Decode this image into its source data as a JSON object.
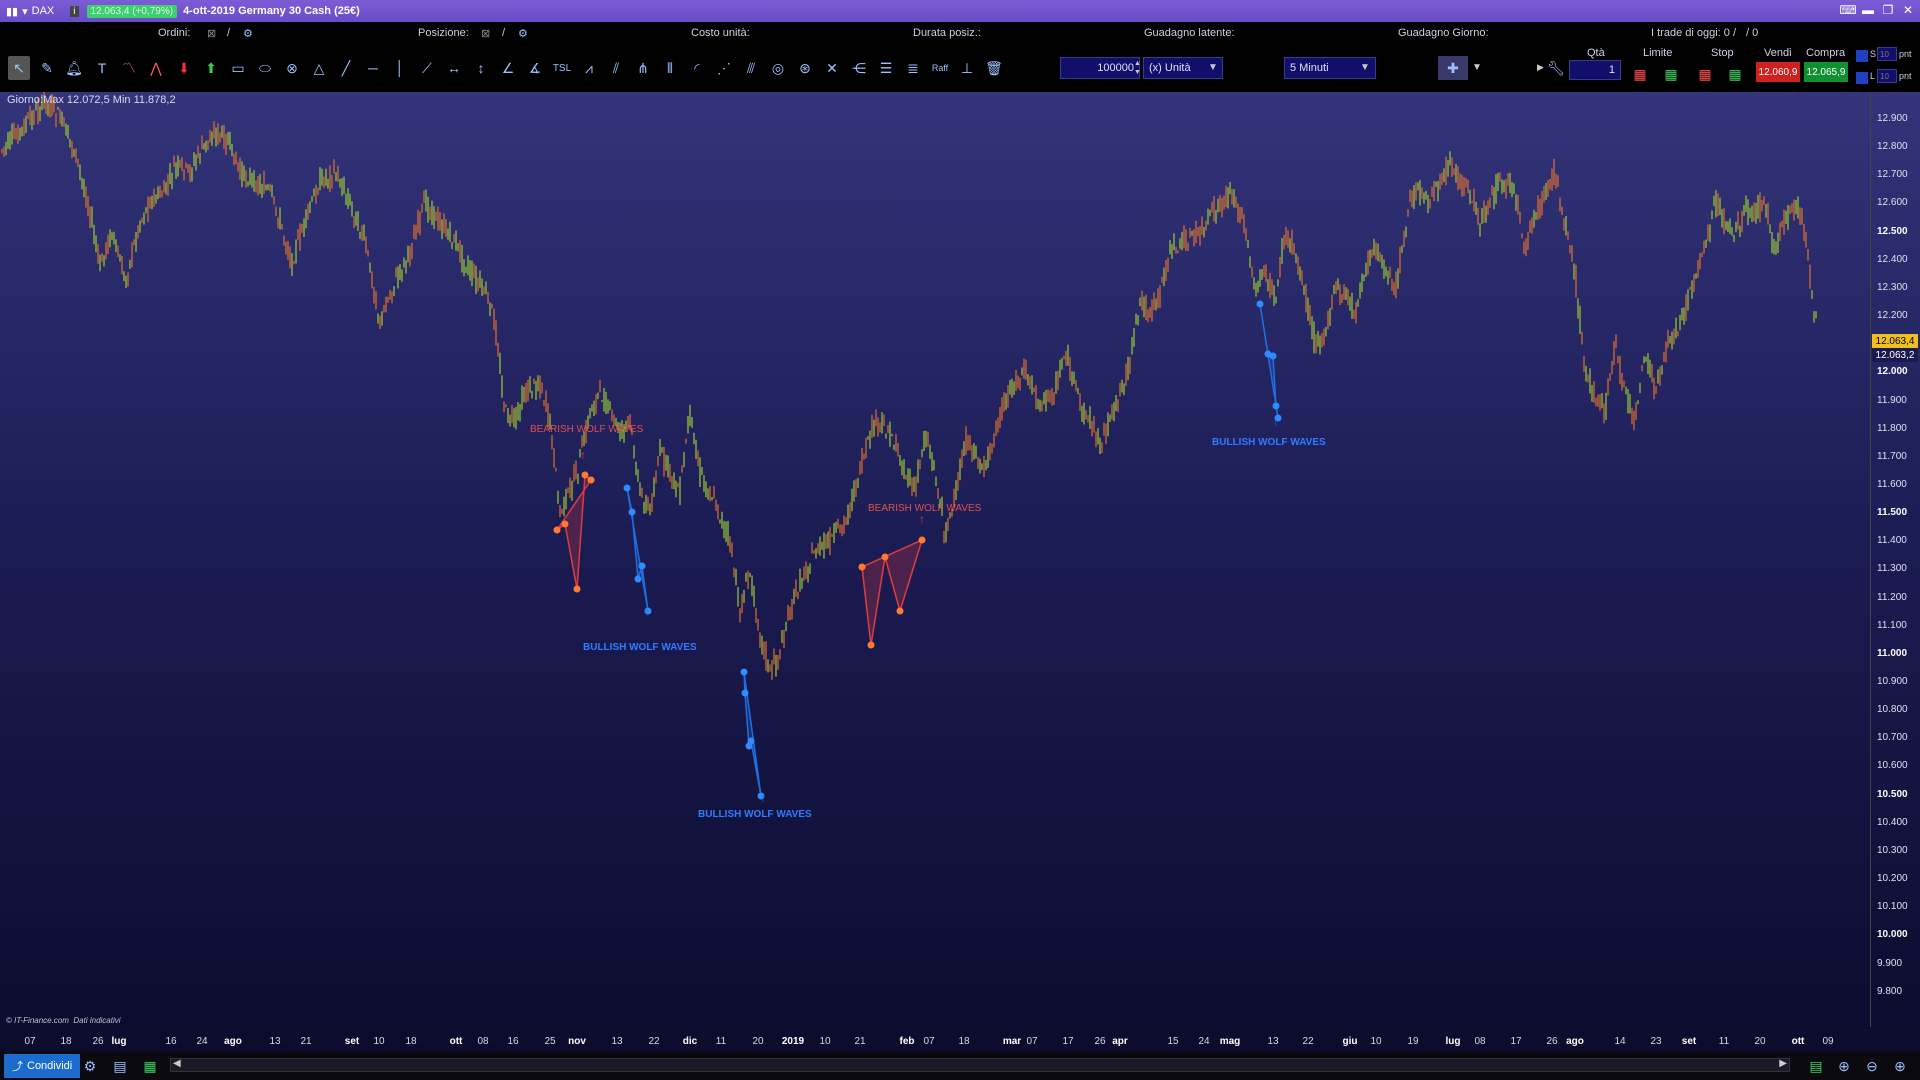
{
  "window": {
    "symbol": "DAX",
    "price_badge": "12.063,4 (+0,79%)",
    "title": "4-ott-2019 Germany 30 Cash (25€)"
  },
  "infobar": {
    "orders_label": "Ordini:",
    "orders_sep": "/",
    "position_label": "Posizione:",
    "position_sep": "/",
    "unit_cost_label": "Costo unità:",
    "duration_label": "Durata posiz.:",
    "latent_gain_label": "Guadagno latente:",
    "day_gain_label": "Guadagno Giorno:",
    "trades_today": "I trade di oggi: 0 /",
    "trades_today_count": "/ 0"
  },
  "toolbar": {
    "quantity_value": "100000",
    "unit_select": "(x) Unità",
    "timeframe_select": "5 Minuti",
    "qty_header": "Qtà",
    "qty_value": "1",
    "limit_header": "Limite",
    "stop_header": "Stop",
    "sell_header": "Vendi",
    "buy_header": "Compra",
    "sell_price": "12.060,9",
    "buy_price": "12.065,9",
    "s_label": "S",
    "l_label": "L",
    "pnt1": "10",
    "pnt1_unit": "pnt",
    "pnt2": "10",
    "pnt2_unit": "pnt"
  },
  "chart": {
    "day_info": "Giorno:Max 12.072,5 Min 11.878,2",
    "copyright": "© IT-Finance.com",
    "indicative": "Dati indicativi",
    "last_price_yellow": "12.063,4",
    "last_price_blue": "12.063,2",
    "y_labels": [
      {
        "text": "12.900",
        "bold": false
      },
      {
        "text": "12.800",
        "bold": false
      },
      {
        "text": "12.700",
        "bold": false
      },
      {
        "text": "12.600",
        "bold": false
      },
      {
        "text": "12.500",
        "bold": true
      },
      {
        "text": "12.400",
        "bold": false
      },
      {
        "text": "12.300",
        "bold": false
      },
      {
        "text": "12.200",
        "bold": false
      },
      {
        "text": "12.000",
        "bold": true
      },
      {
        "text": "11.900",
        "bold": false
      },
      {
        "text": "11.800",
        "bold": false
      },
      {
        "text": "11.700",
        "bold": false
      },
      {
        "text": "11.600",
        "bold": false
      },
      {
        "text": "11.500",
        "bold": true
      },
      {
        "text": "11.400",
        "bold": false
      },
      {
        "text": "11.300",
        "bold": false
      },
      {
        "text": "11.200",
        "bold": false
      },
      {
        "text": "11.100",
        "bold": false
      },
      {
        "text": "11.000",
        "bold": true
      },
      {
        "text": "10.900",
        "bold": false
      },
      {
        "text": "10.800",
        "bold": false
      },
      {
        "text": "10.700",
        "bold": false
      },
      {
        "text": "10.600",
        "bold": false
      },
      {
        "text": "10.500",
        "bold": true
      },
      {
        "text": "10.400",
        "bold": false
      },
      {
        "text": "10.300",
        "bold": false
      },
      {
        "text": "10.200",
        "bold": false
      },
      {
        "text": "10.100",
        "bold": false
      },
      {
        "text": "10.000",
        "bold": true
      },
      {
        "text": "9.900",
        "bold": false
      },
      {
        "text": "9.800",
        "bold": false
      }
    ],
    "x_labels": [
      {
        "text": "07",
        "bold": false
      },
      {
        "text": "18",
        "bold": false
      },
      {
        "text": "26",
        "bold": false
      },
      {
        "text": "lug",
        "bold": true
      },
      {
        "text": "16",
        "bold": false
      },
      {
        "text": "24",
        "bold": false
      },
      {
        "text": "ago",
        "bold": true
      },
      {
        "text": "13",
        "bold": false
      },
      {
        "text": "21",
        "bold": false
      },
      {
        "text": "set",
        "bold": true
      },
      {
        "text": "10",
        "bold": false
      },
      {
        "text": "18",
        "bold": false
      },
      {
        "text": "ott",
        "bold": true
      },
      {
        "text": "08",
        "bold": false
      },
      {
        "text": "16",
        "bold": false
      },
      {
        "text": "25",
        "bold": false
      },
      {
        "text": "nov",
        "bold": true
      },
      {
        "text": "13",
        "bold": false
      },
      {
        "text": "22",
        "bold": false
      },
      {
        "text": "dic",
        "bold": true
      },
      {
        "text": "11",
        "bold": false
      },
      {
        "text": "20",
        "bold": false
      },
      {
        "text": "2019",
        "bold": true
      },
      {
        "text": "10",
        "bold": false
      },
      {
        "text": "21",
        "bold": false
      },
      {
        "text": "feb",
        "bold": true
      },
      {
        "text": "07",
        "bold": false
      },
      {
        "text": "18",
        "bold": false
      },
      {
        "text": "mar",
        "bold": true
      },
      {
        "text": "07",
        "bold": false
      },
      {
        "text": "17",
        "bold": false
      },
      {
        "text": "26",
        "bold": false
      },
      {
        "text": "apr",
        "bold": true
      },
      {
        "text": "15",
        "bold": false
      },
      {
        "text": "24",
        "bold": false
      },
      {
        "text": "mag",
        "bold": true
      },
      {
        "text": "13",
        "bold": false
      },
      {
        "text": "22",
        "bold": false
      },
      {
        "text": "giu",
        "bold": true
      },
      {
        "text": "10",
        "bold": false
      },
      {
        "text": "19",
        "bold": false
      },
      {
        "text": "lug",
        "bold": true
      },
      {
        "text": "08",
        "bold": false
      },
      {
        "text": "17",
        "bold": false
      },
      {
        "text": "26",
        "bold": false
      },
      {
        "text": "ago",
        "bold": true
      },
      {
        "text": "14",
        "bold": false
      },
      {
        "text": "23",
        "bold": false
      },
      {
        "text": "set",
        "bold": true
      },
      {
        "text": "11",
        "bold": false
      },
      {
        "text": "20",
        "bold": false
      },
      {
        "text": "ott",
        "bold": true
      },
      {
        "text": "09",
        "bold": false
      }
    ],
    "patterns": [
      {
        "label": "BEARISH WOLF WAVES",
        "kind": "bearish"
      },
      {
        "label": "BULLISH WOLF WAVES",
        "kind": "bullish"
      },
      {
        "label": "BULLISH WOLF WAVES",
        "kind": "bullish"
      },
      {
        "label": "BEARISH WOLF WAVES",
        "kind": "bearish"
      },
      {
        "label": "BULLISH WOLF WAVES",
        "kind": "bullish"
      }
    ],
    "colors": {
      "bearish": "#e03c3c",
      "bullish": "#1f6fe0",
      "bearish_label": "#e05050",
      "bullish_label": "#2f7cff",
      "candle_up": "#9acd32",
      "candle_down": "#e07030"
    }
  },
  "footer": {
    "share_label": "Condividi"
  }
}
